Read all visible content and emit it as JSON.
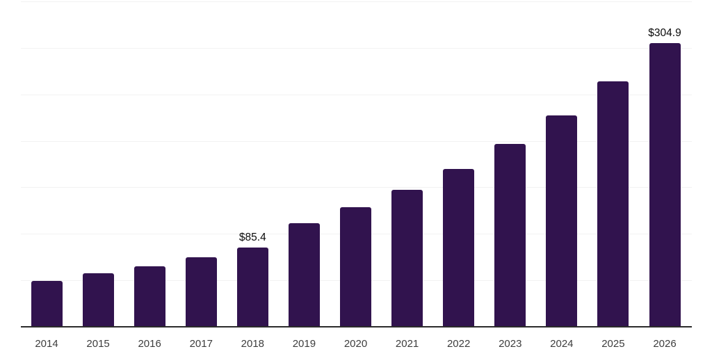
{
  "chart_data": {
    "type": "bar",
    "title": "",
    "xlabel": "",
    "ylabel": "",
    "categories": [
      "2014",
      "2015",
      "2016",
      "2017",
      "2018",
      "2019",
      "2020",
      "2021",
      "2022",
      "2023",
      "2024",
      "2025",
      "2026"
    ],
    "values": [
      49.4,
      57.6,
      65.1,
      74.8,
      85.4,
      111.2,
      128.6,
      147.3,
      169.8,
      196.7,
      227.4,
      263.8,
      304.9
    ],
    "data_labels": [
      {
        "category": "2018",
        "text": "$85.4"
      },
      {
        "category": "2026",
        "text": "$304.9"
      }
    ],
    "ylim": [
      0,
      350
    ],
    "gridline_step": 50,
    "grid": "horizontal-only",
    "legend": "none",
    "y_axis_ticks_visible": false,
    "colors": {
      "bar": "#31134e",
      "axis_line": "#2b2b2b",
      "gridline": "#f2f2f2",
      "tick_label": "#3d3d3d",
      "data_label": "#0a0a0a",
      "background": "#ffffff"
    }
  }
}
